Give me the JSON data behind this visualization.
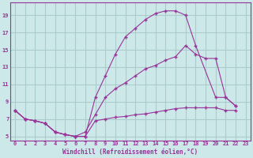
{
  "background_color": "#cce8e8",
  "grid_color": "#aacccc",
  "line_color": "#993399",
  "marker": "+",
  "xlabel": "Windchill (Refroidissement éolien,°C)",
  "xlim": [
    -0.5,
    23.5
  ],
  "ylim": [
    4.5,
    20.5
  ],
  "xticks": [
    0,
    1,
    2,
    3,
    4,
    5,
    6,
    7,
    8,
    9,
    10,
    11,
    12,
    13,
    14,
    15,
    16,
    17,
    18,
    19,
    20,
    21,
    22,
    23
  ],
  "yticks": [
    5,
    7,
    9,
    11,
    13,
    15,
    17,
    19
  ],
  "series": [
    {
      "x": [
        0,
        1,
        2,
        3,
        4,
        5,
        6,
        7,
        8,
        9,
        10,
        11,
        12,
        13,
        14,
        15,
        16,
        17,
        18,
        20,
        21,
        22
      ],
      "y": [
        8,
        7,
        6.8,
        6.5,
        5.5,
        5.2,
        5.0,
        5.0,
        9.5,
        12.0,
        14.5,
        16.5,
        17.5,
        18.5,
        19.2,
        19.5,
        19.5,
        19.0,
        15.5,
        9.5,
        9.5,
        8.5
      ]
    },
    {
      "x": [
        0,
        1,
        2,
        3,
        4,
        5,
        6,
        7,
        8,
        9,
        10,
        11,
        12,
        13,
        14,
        15,
        16,
        17,
        18,
        19,
        20,
        21,
        22
      ],
      "y": [
        8,
        7,
        6.8,
        6.5,
        5.5,
        5.2,
        5.0,
        5.0,
        6.8,
        7.0,
        7.2,
        7.3,
        7.5,
        7.6,
        7.8,
        8.0,
        8.2,
        8.3,
        8.3,
        8.3,
        8.3,
        8.0,
        8.0
      ]
    },
    {
      "x": [
        0,
        1,
        2,
        3,
        4,
        5,
        6,
        7,
        8,
        9,
        10,
        11,
        12,
        13,
        14,
        15,
        16,
        17,
        18,
        19,
        20,
        21,
        22
      ],
      "y": [
        8,
        7,
        6.8,
        6.5,
        5.5,
        5.2,
        5.0,
        5.5,
        7.5,
        9.5,
        10.5,
        11.2,
        12.0,
        12.8,
        13.2,
        13.8,
        14.2,
        15.5,
        14.5,
        14.0,
        14.0,
        9.5,
        8.5
      ]
    }
  ]
}
